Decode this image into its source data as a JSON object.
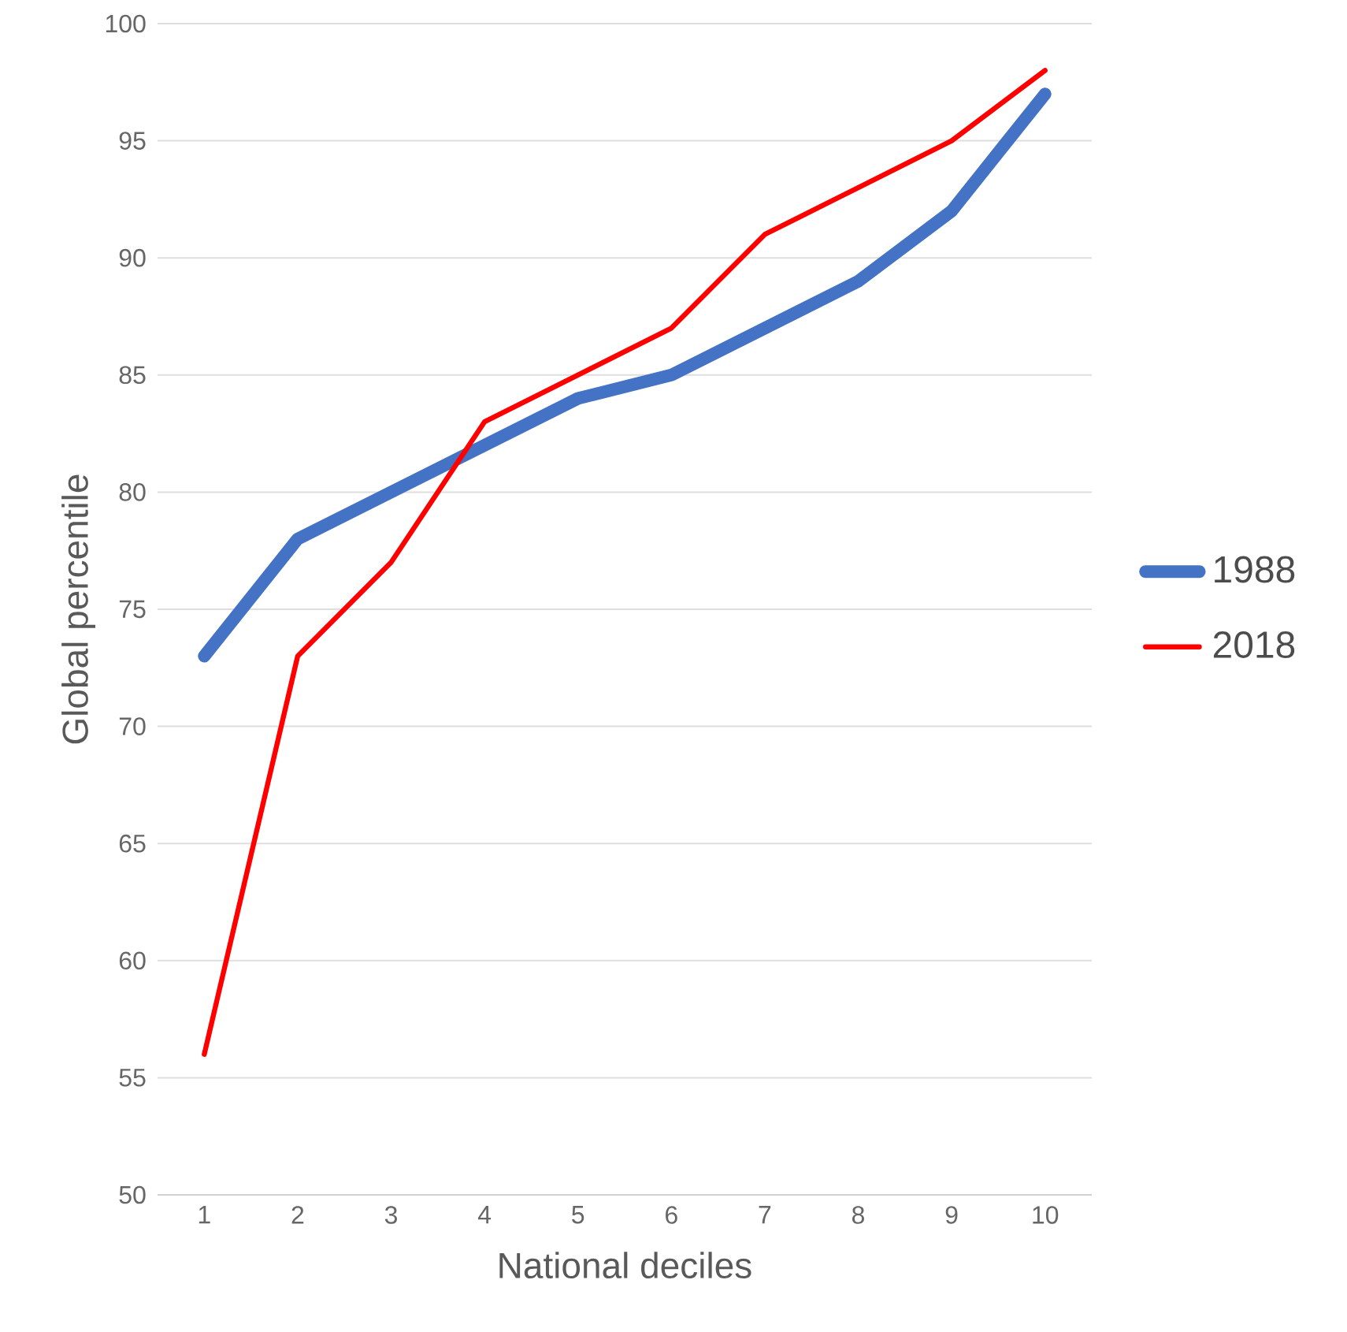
{
  "chart_data": {
    "type": "line",
    "xlabel": "National deciles",
    "ylabel": "Global percentile",
    "categories": [
      "1",
      "2",
      "3",
      "4",
      "5",
      "6",
      "7",
      "8",
      "9",
      "10"
    ],
    "series": [
      {
        "name": "1988",
        "color": "#4472c4",
        "values": [
          73,
          78,
          80,
          82,
          84,
          85,
          87,
          89,
          92,
          97
        ]
      },
      {
        "name": "2018",
        "color": "#ff0000",
        "values": [
          56,
          73,
          77,
          83,
          85,
          87,
          91,
          93,
          95,
          98
        ]
      }
    ],
    "ylim": [
      50,
      100
    ],
    "yticks": [
      50,
      55,
      60,
      65,
      70,
      75,
      80,
      85,
      90,
      95,
      100
    ],
    "grid": "y",
    "legend": "right",
    "marker": "none",
    "line_style": "solid"
  }
}
